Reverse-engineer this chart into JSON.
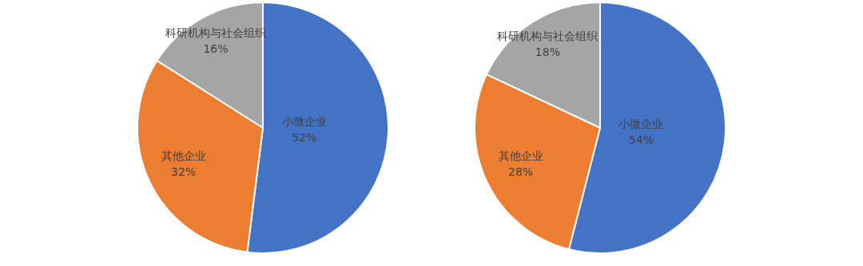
{
  "chart_data": [
    {
      "type": "pie",
      "categories": [
        "小微企业",
        "其他企业",
        "科研机构与社会组织"
      ],
      "values": [
        52,
        32,
        16
      ],
      "colors": [
        "#4472c4",
        "#ed7d31",
        "#a5a5a5"
      ],
      "value_labels": [
        "52%",
        "32%",
        "16%"
      ]
    },
    {
      "type": "pie",
      "categories": [
        "小微企业",
        "其他企业",
        "科研机构与社会组织"
      ],
      "values": [
        54,
        28,
        18
      ],
      "colors": [
        "#4472c4",
        "#ed7d31",
        "#a5a5a5"
      ],
      "value_labels": [
        "54%",
        "28%",
        "18%"
      ]
    }
  ]
}
